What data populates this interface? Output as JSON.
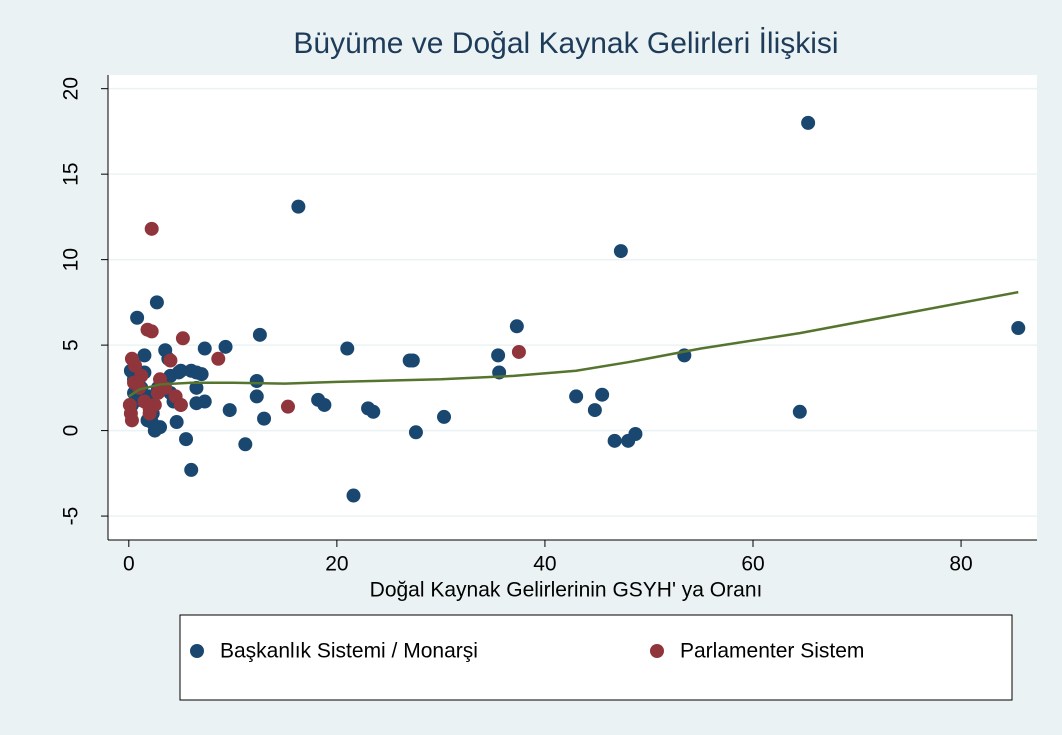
{
  "chart_data": {
    "type": "scatter",
    "title": "Büyüme ve Doğal Kaynak Gelirleri İlişkisi",
    "x_label": "Doğal Kaynak Gelirlerinin GSYH' ya Oranı",
    "xlim": [
      -2,
      87.3
    ],
    "ylim": [
      -6.4,
      20.8
    ],
    "xticks": [
      0,
      20,
      40,
      60,
      80
    ],
    "yticks": [
      -5,
      0,
      5,
      10,
      15,
      20
    ],
    "grid": true,
    "legend": "bottom",
    "series": [
      {
        "name": "Başkanlık Sistemi / Monarşi",
        "color": "#1a476f",
        "x": [
          0.2,
          0.5,
          0.8,
          1.2,
          1.5,
          1.5,
          1.8,
          2,
          2.3,
          2.5,
          2.7,
          3,
          3.3,
          3.5,
          3.8,
          4,
          4.3,
          4.6,
          4.8,
          5,
          5.5,
          6,
          6,
          6.5,
          6.5,
          7,
          7.3,
          7.3,
          9.3,
          9.7,
          11.2,
          12.3,
          12.3,
          12.6,
          13,
          16.3,
          18.2,
          18.8,
          21,
          21.6,
          23,
          23.5,
          27,
          27.3,
          27.6,
          30.3,
          35.5,
          35.6,
          37.3,
          43,
          44.8,
          45.5,
          46.7,
          47.3,
          48,
          48.7,
          53.4,
          64.5,
          65.3,
          85.5,
          0.3,
          0.5,
          1,
          2.2,
          2.8,
          4,
          5,
          6.5
        ],
        "values": [
          3.5,
          3.0,
          6.6,
          2.5,
          4.4,
          3.4,
          0.6,
          2.0,
          1.0,
          0,
          7.5,
          0.2,
          2.8,
          4.7,
          4.2,
          2.2,
          1.7,
          0.5,
          3.4,
          1.5,
          -0.5,
          3.5,
          -2.3,
          2.5,
          1.6,
          3.3,
          4.8,
          1.7,
          4.9,
          1.2,
          -0.8,
          2.9,
          2.0,
          5.6,
          0.7,
          13.1,
          1.8,
          1.5,
          4.8,
          -3.8,
          1.3,
          1.1,
          4.1,
          4.1,
          -0.1,
          0.8,
          4.4,
          3.4,
          6.1,
          2.0,
          1.2,
          2.1,
          -0.6,
          10.5,
          -0.6,
          -0.2,
          4.4,
          1.1,
          18.0,
          6.0,
          1.5,
          2.2,
          1.8,
          0.5,
          2.5,
          3.2,
          3.5,
          3.4
        ]
      },
      {
        "name": "Parlamenter Sistem",
        "color": "#90353b",
        "x": [
          2.2,
          1.8,
          2.2,
          5.2,
          0.3,
          0.6,
          4.0,
          8.6,
          37.5,
          15.3,
          0.1,
          0.3,
          0.2,
          1,
          1.5,
          2,
          2.5,
          3,
          3.5,
          4.5,
          5,
          2.8,
          0.5,
          1.2,
          2
        ],
        "values": [
          11.8,
          5.9,
          5.8,
          5.4,
          4.2,
          3.8,
          4.1,
          4.2,
          4.6,
          1.4,
          1.5,
          0.6,
          1.0,
          2.5,
          1.7,
          1.3,
          1.5,
          3.0,
          2.5,
          2.0,
          1.5,
          2.2,
          2.8,
          3.2,
          1.0
        ]
      },
      {
        "type": "line",
        "color": "#55752f",
        "x": [
          0,
          1,
          3,
          6,
          10,
          15,
          20,
          30,
          37,
          43,
          48,
          55,
          64.5,
          75,
          85.5
        ],
        "values": [
          2.0,
          2.4,
          2.7,
          2.8,
          2.8,
          2.75,
          2.85,
          3.0,
          3.2,
          3.5,
          4.0,
          4.8,
          5.7,
          6.9,
          8.1
        ]
      }
    ]
  }
}
